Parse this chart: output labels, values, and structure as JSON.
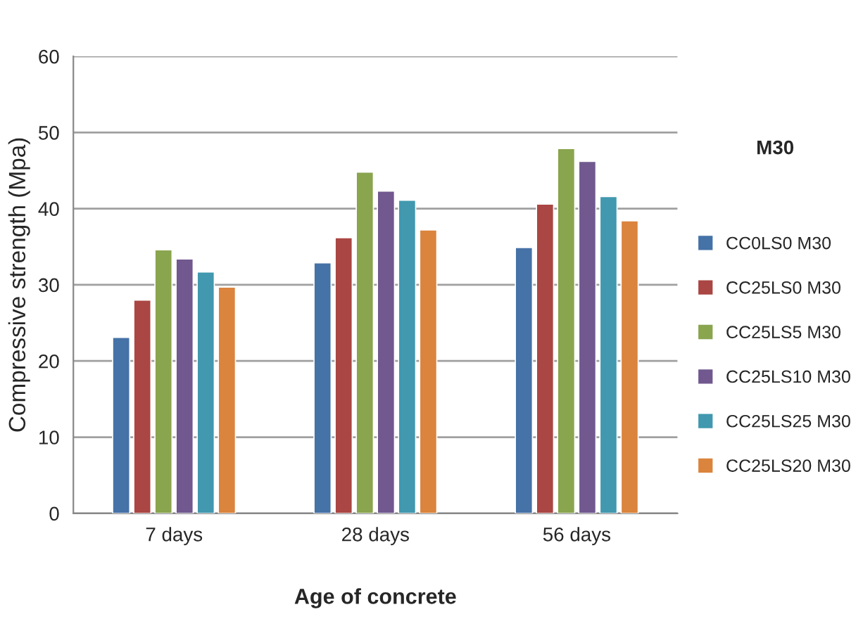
{
  "chart_data": {
    "type": "bar",
    "xlabel": "Age of concrete",
    "ylabel": "Compressive strength (Mpa)",
    "legend_title": "M30",
    "categories": [
      "7 days",
      "28 days",
      "56 days"
    ],
    "series": [
      {
        "name": "CC0LS0 M30",
        "color": "#4572a7",
        "values": [
          23.1,
          32.9,
          34.9
        ]
      },
      {
        "name": "CC25LS0 M30",
        "color": "#aa4643",
        "values": [
          28,
          36.2,
          40.6
        ]
      },
      {
        "name": "CC25LS5 M30",
        "color": "#89a54e",
        "values": [
          34.6,
          44.8,
          47.9
        ]
      },
      {
        "name": "CC25LS10 M30",
        "color": "#71588f",
        "values": [
          33.4,
          42.3,
          46.2
        ]
      },
      {
        "name": "CC25LS25 M30",
        "color": "#4198af",
        "values": [
          31.7,
          41.1,
          41.6
        ]
      },
      {
        "name": "CC25LS20 M30",
        "color": "#db843d",
        "values": [
          29.7,
          37.2,
          38.4
        ]
      }
    ],
    "ylim": [
      0,
      60
    ],
    "yticks": [
      0,
      10,
      20,
      30,
      40,
      50,
      60
    ],
    "grid": "y",
    "legend": "right"
  }
}
